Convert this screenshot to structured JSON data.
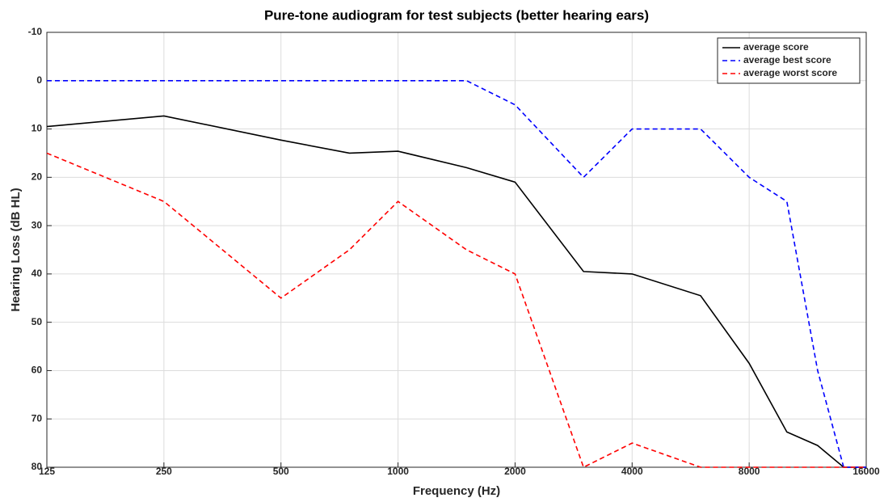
{
  "chart_data": {
    "type": "line",
    "title": "Pure-tone audiogram for test subjects (better hearing ears)",
    "xlabel": "Frequency (Hz)",
    "ylabel": "Hearing Loss (dB HL)",
    "x": [
      125,
      250,
      500,
      750,
      1000,
      1500,
      2000,
      3000,
      4000,
      6000,
      8000,
      10000,
      12000,
      14000,
      16000
    ],
    "series": [
      {
        "name": "average score",
        "color": "#000000",
        "dash": "solid",
        "values": [
          9.5,
          7.3,
          12.3,
          15,
          14.6,
          18,
          21,
          39.5,
          40,
          44.5,
          58.5,
          72.7,
          75.5,
          80,
          80
        ]
      },
      {
        "name": "average best score",
        "color": "#0000ff",
        "dash": "dashed",
        "values": [
          0,
          0,
          0,
          0,
          0,
          0,
          5,
          20,
          10,
          10,
          20,
          25,
          60,
          80,
          80
        ]
      },
      {
        "name": "average worst score",
        "color": "#ff0000",
        "dash": "dashed",
        "values": [
          15,
          25,
          45,
          35,
          25,
          35,
          40,
          80,
          75,
          80,
          80,
          80,
          80,
          80,
          80
        ]
      }
    ],
    "xscale": "log",
    "xlim": [
      125,
      16000
    ],
    "xticks": [
      125,
      250,
      500,
      1000,
      2000,
      4000,
      8000,
      16000
    ],
    "ylim": [
      -10,
      80
    ],
    "y_reversed": true,
    "yticks": [
      -10,
      0,
      10,
      20,
      30,
      40,
      50,
      60,
      70,
      80
    ],
    "grid": true,
    "legend": "upper right"
  }
}
